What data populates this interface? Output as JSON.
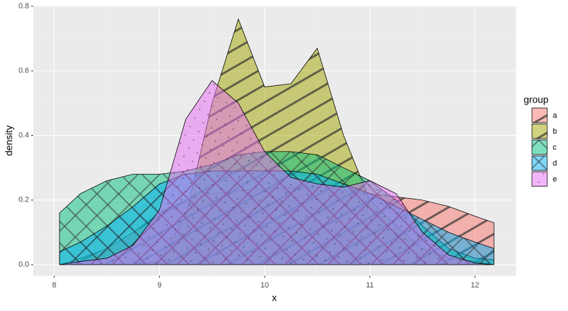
{
  "chart_data": {
    "type": "density",
    "x_label": "x",
    "y_label": "density",
    "legend_title": "group",
    "x": [
      8.05,
      8.25,
      8.5,
      8.75,
      9.0,
      9.25,
      9.5,
      9.75,
      10.0,
      10.25,
      10.5,
      10.75,
      11.0,
      11.25,
      11.5,
      11.75,
      12.0,
      12.18
    ],
    "series": [
      {
        "name": "a",
        "color": "#F8766D",
        "pattern": "stripe",
        "values": [
          0,
          0.02,
          0.05,
          0.1,
          0.16,
          0.2,
          0.22,
          0.23,
          0.235,
          0.24,
          0.24,
          0.23,
          0.22,
          0.21,
          0.2,
          0.18,
          0.15,
          0.13
        ]
      },
      {
        "name": "b",
        "color": "#A3A500",
        "pattern": "stripe",
        "values": [
          0,
          0,
          0,
          0,
          0.01,
          0.15,
          0.5,
          0.76,
          0.55,
          0.56,
          0.67,
          0.4,
          0.2,
          0.12,
          0.05,
          0.02,
          0.01,
          0
        ]
      },
      {
        "name": "c",
        "color": "#00BF7D",
        "pattern": "crosshatch",
        "values": [
          0.16,
          0.22,
          0.26,
          0.28,
          0.28,
          0.29,
          0.31,
          0.34,
          0.35,
          0.35,
          0.34,
          0.3,
          0.26,
          0.2,
          0.12,
          0.05,
          0.02,
          0.015
        ]
      },
      {
        "name": "d",
        "color": "#00B0F6",
        "pattern": "crosshatch",
        "values": [
          0.04,
          0.07,
          0.12,
          0.18,
          0.25,
          0.28,
          0.29,
          0.29,
          0.29,
          0.29,
          0.28,
          0.25,
          0.22,
          0.18,
          0.14,
          0.1,
          0.07,
          0.05
        ]
      },
      {
        "name": "e",
        "color": "#E76BF3",
        "pattern": "dots",
        "values": [
          0,
          0.01,
          0.02,
          0.06,
          0.17,
          0.45,
          0.57,
          0.5,
          0.35,
          0.27,
          0.25,
          0.24,
          0.26,
          0.22,
          0.1,
          0.03,
          0.005,
          0
        ]
      }
    ],
    "xlim": [
      7.8,
      12.39
    ],
    "ylim": [
      -0.034,
      0.802
    ],
    "xticks": [
      8,
      9,
      10,
      11,
      12
    ],
    "yticks": [
      {
        "value": 0,
        "label": "0.0"
      },
      0.2,
      0.4,
      0.6,
      0.8
    ],
    "grid": true,
    "legend_position": "right"
  }
}
